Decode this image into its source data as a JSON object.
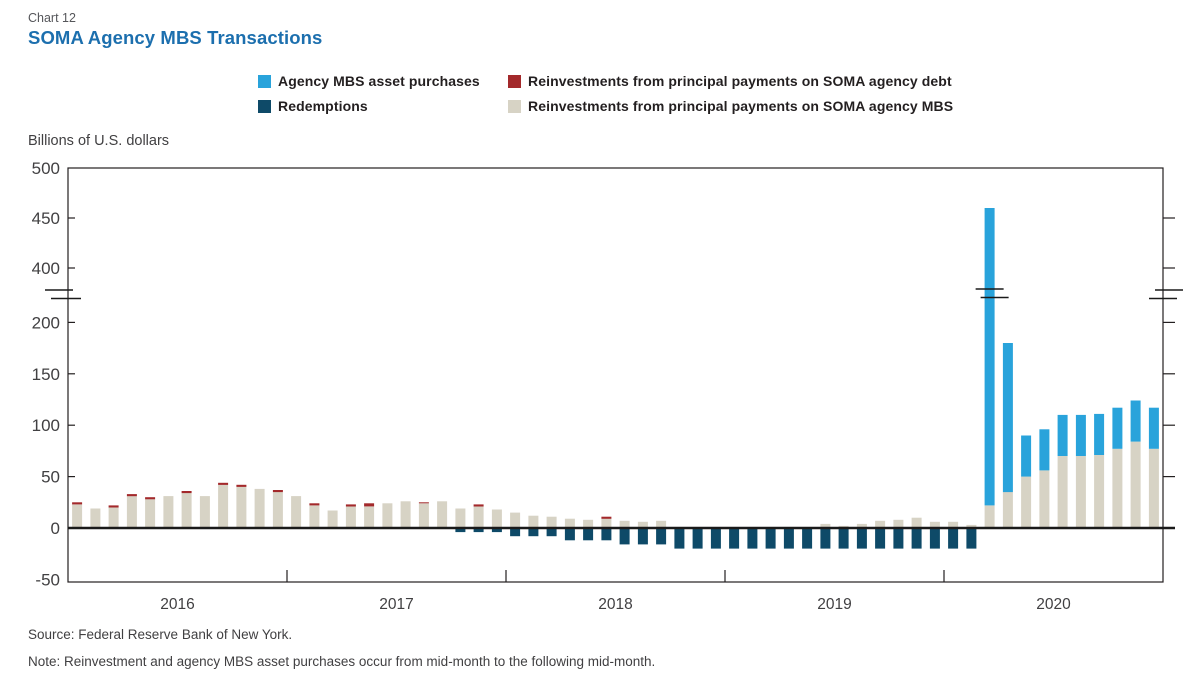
{
  "header": {
    "chart_label": "Chart 12",
    "title": "SOMA Agency MBS Transactions"
  },
  "legend": {
    "items": [
      {
        "label": "Agency MBS asset purchases",
        "color": "#29A3DB"
      },
      {
        "label": "Redemptions",
        "color": "#0E4A68"
      },
      {
        "label": "Reinvestments from principal payments on SOMA agency debt",
        "color": "#A3292B"
      },
      {
        "label": "Reinvestments from principal payments on SOMA agency MBS",
        "color": "#D7D3C5"
      }
    ]
  },
  "axis": {
    "unit_label": "Billions of U.S. dollars"
  },
  "footer": {
    "source": "Source: Federal Reserve Bank of New York.",
    "note": "Note: Reinvestment and agency MBS asset purchases occur from mid-month to the following mid-month."
  },
  "chart_data": {
    "type": "bar",
    "stacked": true,
    "title": "SOMA Agency MBS Transactions",
    "ylabel": "Billions of U.S. dollars",
    "grid": false,
    "legend_position": "top",
    "x_years": [
      "2016",
      "2017",
      "2018",
      "2019",
      "2020"
    ],
    "months": [
      "2016-01",
      "2016-02",
      "2016-03",
      "2016-04",
      "2016-05",
      "2016-06",
      "2016-07",
      "2016-08",
      "2016-09",
      "2016-10",
      "2016-11",
      "2016-12",
      "2017-01",
      "2017-02",
      "2017-03",
      "2017-04",
      "2017-05",
      "2017-06",
      "2017-07",
      "2017-08",
      "2017-09",
      "2017-10",
      "2017-11",
      "2017-12",
      "2018-01",
      "2018-02",
      "2018-03",
      "2018-04",
      "2018-05",
      "2018-06",
      "2018-07",
      "2018-08",
      "2018-09",
      "2018-10",
      "2018-11",
      "2018-12",
      "2019-01",
      "2019-02",
      "2019-03",
      "2019-04",
      "2019-05",
      "2019-06",
      "2019-07",
      "2019-08",
      "2019-09",
      "2019-10",
      "2019-11",
      "2019-12",
      "2020-01",
      "2020-02",
      "2020-03",
      "2020-04",
      "2020-05",
      "2020-06",
      "2020-07",
      "2020-08",
      "2020-09",
      "2020-10",
      "2020-11",
      "2020-12"
    ],
    "y_ticks": [
      500,
      450,
      400,
      200,
      150,
      100,
      50,
      0,
      -50
    ],
    "axis_break_between": [
      225,
      375
    ],
    "bar_break_month_index": 50,
    "series": [
      {
        "name": "Agency MBS asset purchases",
        "color": "#29A3DB",
        "stack_order": 3,
        "values": [
          0,
          0,
          0,
          0,
          0,
          0,
          0,
          0,
          0,
          0,
          0,
          0,
          0,
          0,
          0,
          0,
          0,
          0,
          0,
          0,
          0,
          0,
          0,
          0,
          0,
          0,
          0,
          0,
          0,
          0,
          0,
          0,
          0,
          0,
          0,
          0,
          0,
          0,
          0,
          0,
          0,
          0,
          0,
          0,
          0,
          0,
          0,
          0,
          0,
          0,
          438,
          145,
          40,
          40,
          40,
          40,
          40,
          40,
          40,
          40
        ]
      },
      {
        "name": "Redemptions",
        "color": "#0E4A68",
        "stack_order": 0,
        "values": [
          0,
          0,
          0,
          0,
          0,
          0,
          0,
          0,
          0,
          0,
          0,
          0,
          0,
          0,
          0,
          0,
          0,
          0,
          0,
          0,
          0,
          -4,
          -4,
          -4,
          -8,
          -8,
          -8,
          -12,
          -12,
          -12,
          -16,
          -16,
          -16,
          -20,
          -20,
          -20,
          -20,
          -20,
          -20,
          -20,
          -20,
          -20,
          -20,
          -20,
          -20,
          -20,
          -20,
          -20,
          -20,
          -20,
          0,
          0,
          0,
          0,
          0,
          0,
          0,
          0,
          0,
          0
        ]
      },
      {
        "name": "Reinvestments from principal payments on SOMA agency debt",
        "color": "#A3292B",
        "stack_order": 2,
        "values": [
          2,
          0,
          2,
          2,
          2,
          0,
          2,
          0,
          2,
          2,
          0,
          2,
          0,
          2,
          0,
          2,
          3,
          0,
          0,
          1,
          0,
          0,
          2,
          0,
          0,
          0,
          0,
          0,
          0,
          2,
          0,
          0,
          0,
          0,
          0,
          0,
          0,
          0,
          0,
          0,
          0,
          0,
          0,
          0,
          0,
          0,
          0,
          0,
          0,
          0,
          0,
          0,
          0,
          0,
          0,
          0,
          0,
          0,
          0,
          0
        ]
      },
      {
        "name": "Reinvestments from principal payments on SOMA agency MBS",
        "color": "#D7D3C5",
        "stack_order": 1,
        "values": [
          23,
          19,
          20,
          31,
          28,
          31,
          34,
          31,
          42,
          40,
          38,
          35,
          31,
          22,
          17,
          21,
          21,
          24,
          26,
          24,
          26,
          19,
          21,
          18,
          15,
          12,
          11,
          9,
          8,
          9,
          7,
          6,
          7,
          0,
          0,
          0,
          0,
          0,
          0,
          0,
          0,
          4,
          2,
          4,
          7,
          8,
          10,
          6,
          6,
          3,
          22,
          35,
          50,
          56,
          70,
          70,
          71,
          77,
          84,
          77
        ]
      }
    ],
    "source": "Source: Federal Reserve Bank of New York.",
    "note": "Note: Reinvestment and agency MBS asset purchases occur from mid-month to the following mid-month."
  }
}
